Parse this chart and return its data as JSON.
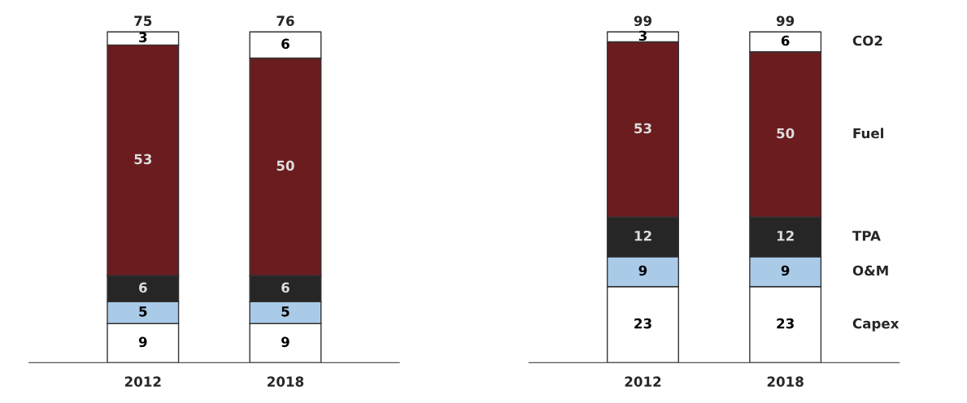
{
  "chart_data": [
    {
      "type": "bar",
      "stacked": true,
      "data_labels": true,
      "categories": [
        "2012",
        "2018"
      ],
      "totals": [
        "75",
        "76"
      ],
      "series": [
        {
          "color": "#ffffff",
          "values": [
            9,
            9
          ]
        },
        {
          "color": "#a9cbe8",
          "values": [
            5,
            5
          ]
        },
        {
          "color": "#262626",
          "values": [
            6,
            6
          ]
        },
        {
          "color": "#6b1c1e",
          "values": [
            53,
            50
          ]
        },
        {
          "color": "#ffffff",
          "values": [
            3,
            6
          ]
        }
      ]
    },
    {
      "type": "bar",
      "stacked": true,
      "data_labels": true,
      "categories": [
        "2012",
        "2018"
      ],
      "totals": [
        "99",
        "99"
      ],
      "series": [
        {
          "name": "Capex",
          "color": "#ffffff",
          "values": [
            23,
            23
          ]
        },
        {
          "name": "O&M",
          "color": "#a9cbe8",
          "values": [
            9,
            9
          ]
        },
        {
          "name": "TPA",
          "color": "#262626",
          "values": [
            12,
            12
          ]
        },
        {
          "name": "Fuel",
          "color": "#6b1c1e",
          "values": [
            53,
            50
          ]
        },
        {
          "name": "CO2",
          "color": "#ffffff",
          "values": [
            3,
            6
          ]
        }
      ]
    }
  ]
}
